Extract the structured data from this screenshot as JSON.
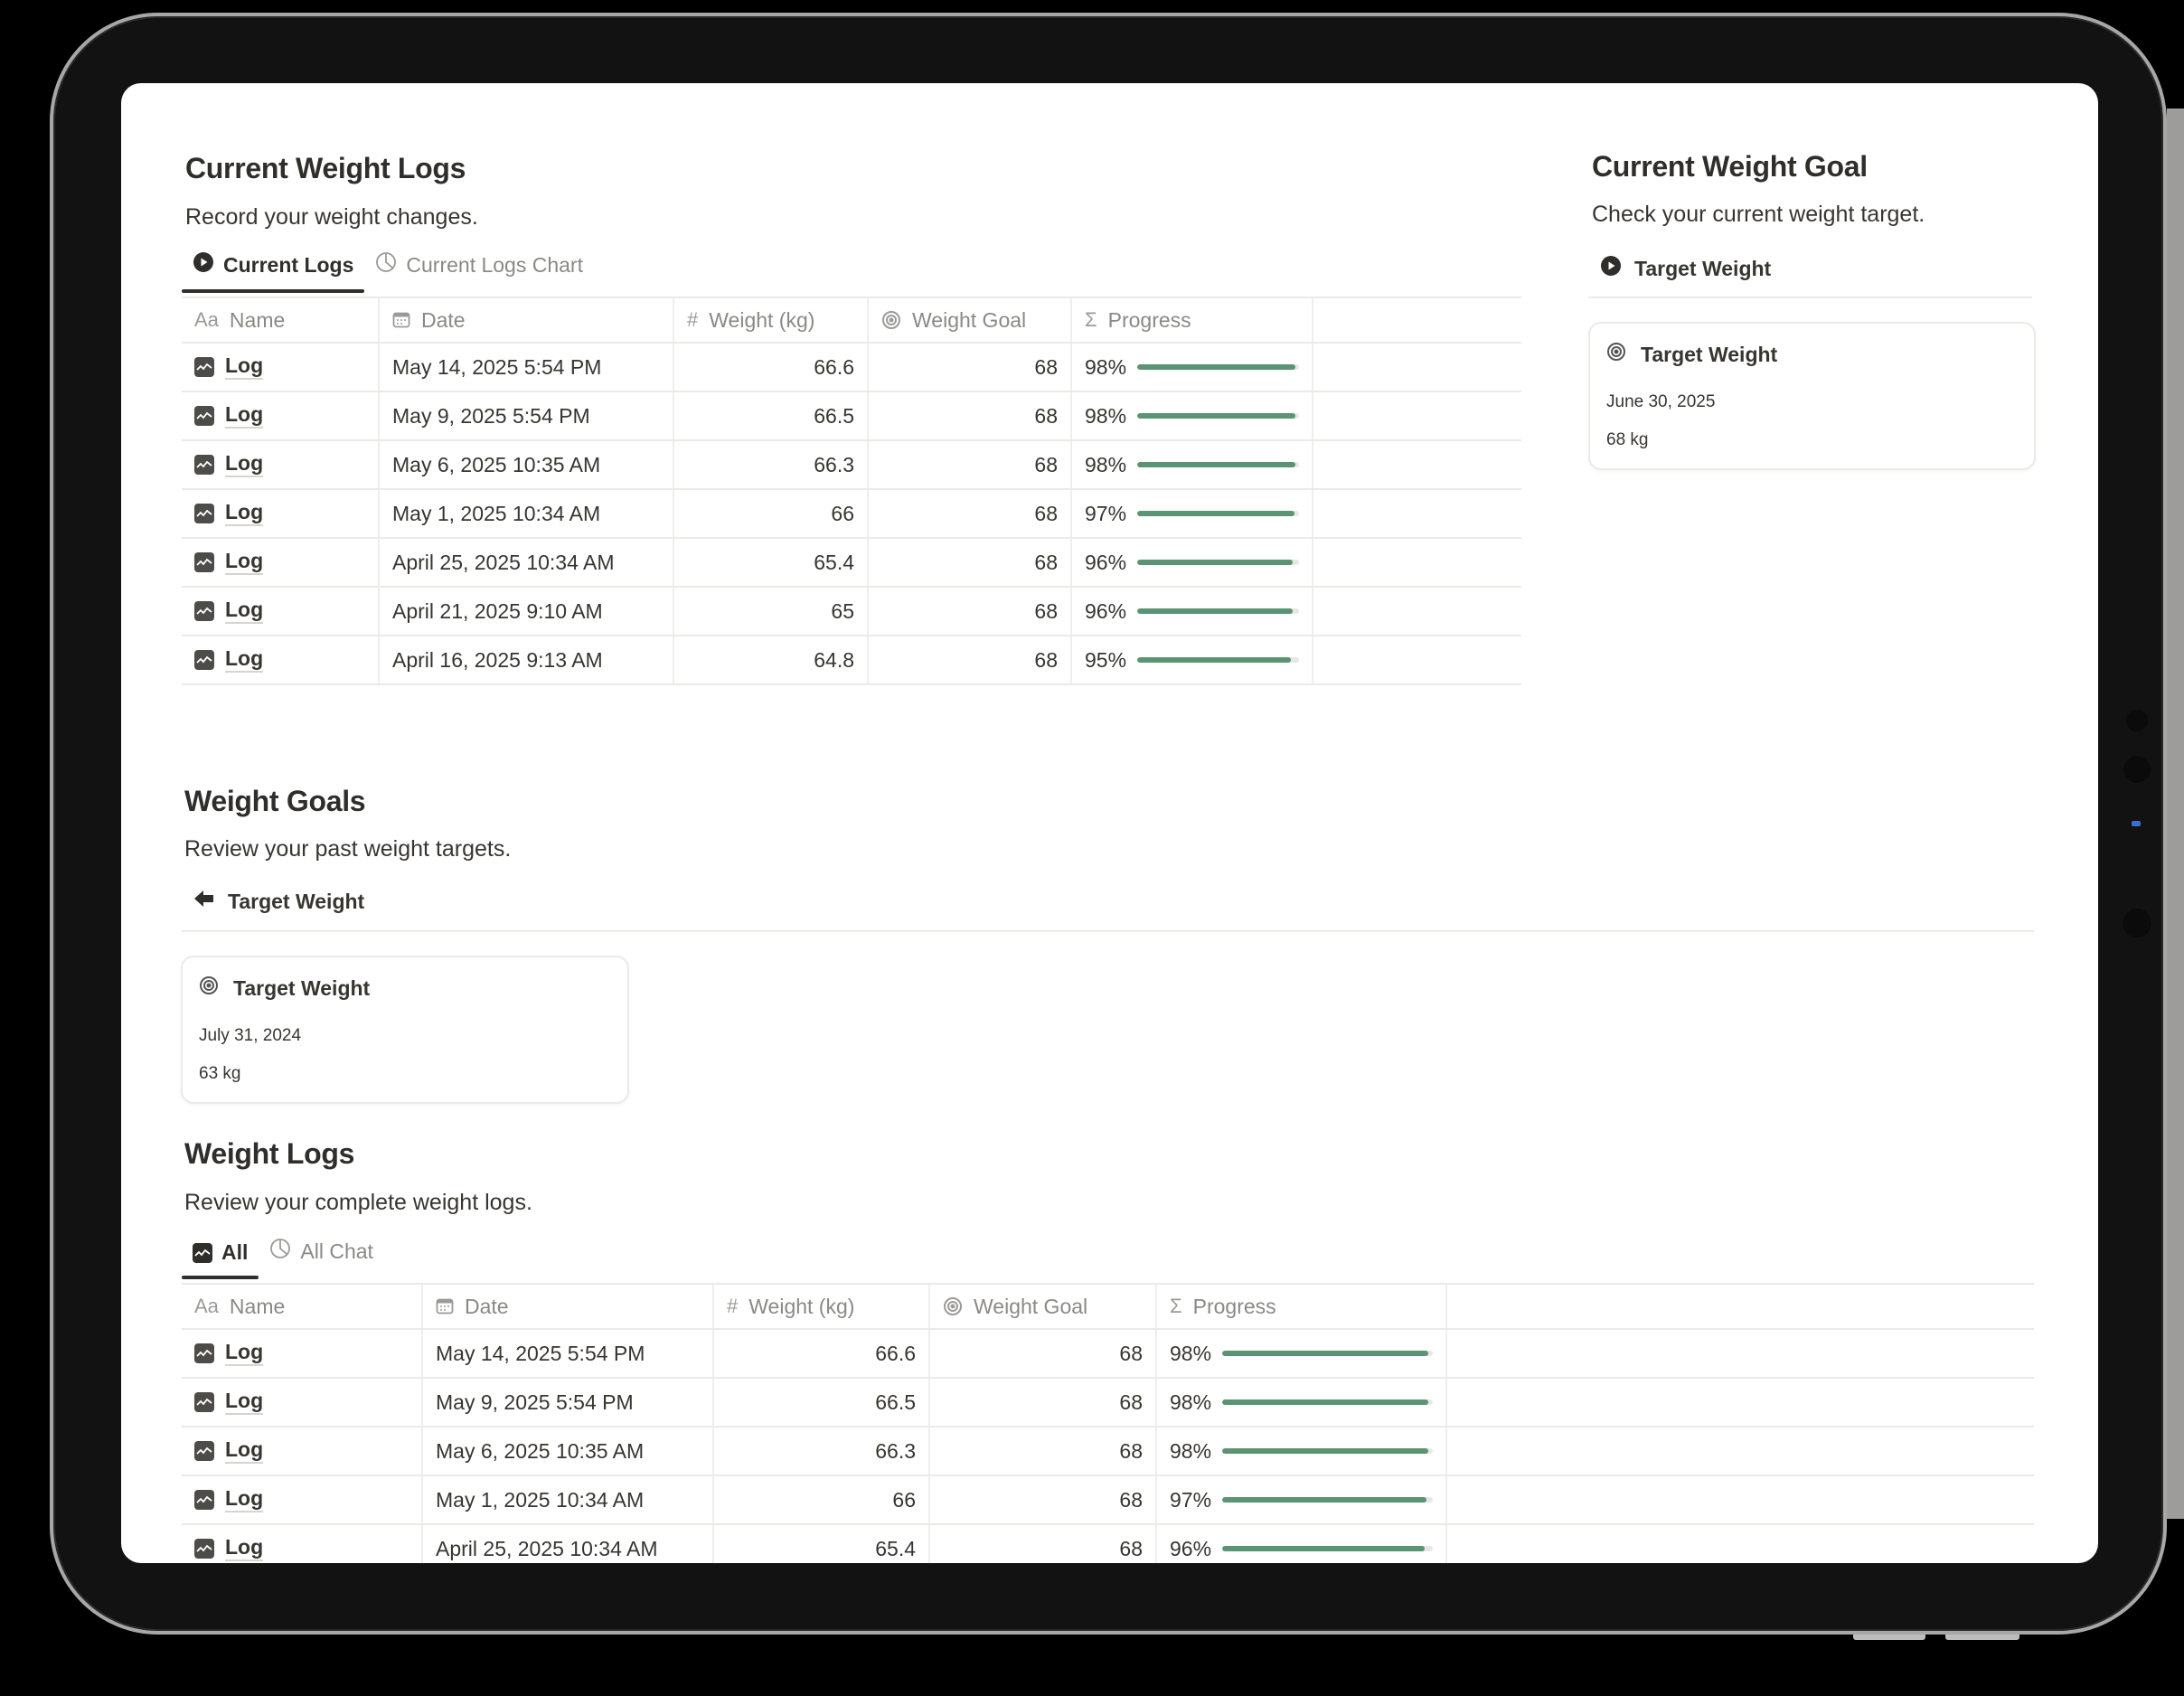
{
  "current_logs": {
    "title": "Current Weight Logs",
    "description": "Record your weight changes.",
    "tabs": [
      {
        "label": "Current Logs",
        "icon": "play-circle-icon",
        "active": true
      },
      {
        "label": "Current Logs Chart",
        "icon": "pie-chart-icon",
        "active": false
      }
    ],
    "columns": [
      {
        "label": "Name",
        "icon": "text-aa-icon"
      },
      {
        "label": "Date",
        "icon": "calendar-icon"
      },
      {
        "label": "Weight (kg)",
        "icon": "hash-icon"
      },
      {
        "label": "Weight Goal",
        "icon": "target-icon"
      },
      {
        "label": "Progress",
        "icon": "sigma-icon"
      }
    ],
    "rows": [
      {
        "name": "Log",
        "date": "May 14, 2025 5:54 PM",
        "weight": "66.6",
        "goal": "68",
        "progress": "98%",
        "pct": 98
      },
      {
        "name": "Log",
        "date": "May 9, 2025 5:54 PM",
        "weight": "66.5",
        "goal": "68",
        "progress": "98%",
        "pct": 98
      },
      {
        "name": "Log",
        "date": "May 6, 2025 10:35 AM",
        "weight": "66.3",
        "goal": "68",
        "progress": "98%",
        "pct": 98
      },
      {
        "name": "Log",
        "date": "May 1, 2025 10:34 AM",
        "weight": "66",
        "goal": "68",
        "progress": "97%",
        "pct": 97
      },
      {
        "name": "Log",
        "date": "April 25, 2025 10:34 AM",
        "weight": "65.4",
        "goal": "68",
        "progress": "96%",
        "pct": 96
      },
      {
        "name": "Log",
        "date": "April 21, 2025 9:10 AM",
        "weight": "65",
        "goal": "68",
        "progress": "96%",
        "pct": 96
      },
      {
        "name": "Log",
        "date": "April 16, 2025 9:13 AM",
        "weight": "64.8",
        "goal": "68",
        "progress": "95%",
        "pct": 95
      }
    ]
  },
  "current_goal": {
    "title": "Current Weight Goal",
    "description": "Check your current weight target.",
    "view_label": "Target Weight",
    "card": {
      "title": "Target Weight",
      "date": "June 30, 2025",
      "weight": "68 kg"
    }
  },
  "weight_goals": {
    "title": "Weight Goals",
    "description": "Review your past weight targets.",
    "view_label": "Target Weight",
    "card": {
      "title": "Target Weight",
      "date": "July 31, 2024",
      "weight": "63 kg"
    }
  },
  "weight_logs": {
    "title": "Weight Logs",
    "description": "Review your complete weight logs.",
    "tabs": [
      {
        "label": "All",
        "icon": "chart-line-icon",
        "active": true
      },
      {
        "label": "All Chat",
        "icon": "pie-chart-icon",
        "active": false
      }
    ],
    "columns": [
      {
        "label": "Name",
        "icon": "text-aa-icon"
      },
      {
        "label": "Date",
        "icon": "calendar-icon"
      },
      {
        "label": "Weight (kg)",
        "icon": "hash-icon"
      },
      {
        "label": "Weight Goal",
        "icon": "target-icon"
      },
      {
        "label": "Progress",
        "icon": "sigma-icon"
      }
    ],
    "rows": [
      {
        "name": "Log",
        "date": "May 14, 2025 5:54 PM",
        "weight": "66.6",
        "goal": "68",
        "progress": "98%",
        "pct": 98
      },
      {
        "name": "Log",
        "date": "May 9, 2025 5:54 PM",
        "weight": "66.5",
        "goal": "68",
        "progress": "98%",
        "pct": 98
      },
      {
        "name": "Log",
        "date": "May 6, 2025 10:35 AM",
        "weight": "66.3",
        "goal": "68",
        "progress": "98%",
        "pct": 98
      },
      {
        "name": "Log",
        "date": "May 1, 2025 10:34 AM",
        "weight": "66",
        "goal": "68",
        "progress": "97%",
        "pct": 97
      },
      {
        "name": "Log",
        "date": "April 25, 2025 10:34 AM",
        "weight": "65.4",
        "goal": "68",
        "progress": "96%",
        "pct": 96
      }
    ]
  },
  "colors": {
    "progress_fill": "#5a9472",
    "progress_track": "#e8e7e4",
    "text": "#37352f",
    "muted": "#8a8985"
  }
}
